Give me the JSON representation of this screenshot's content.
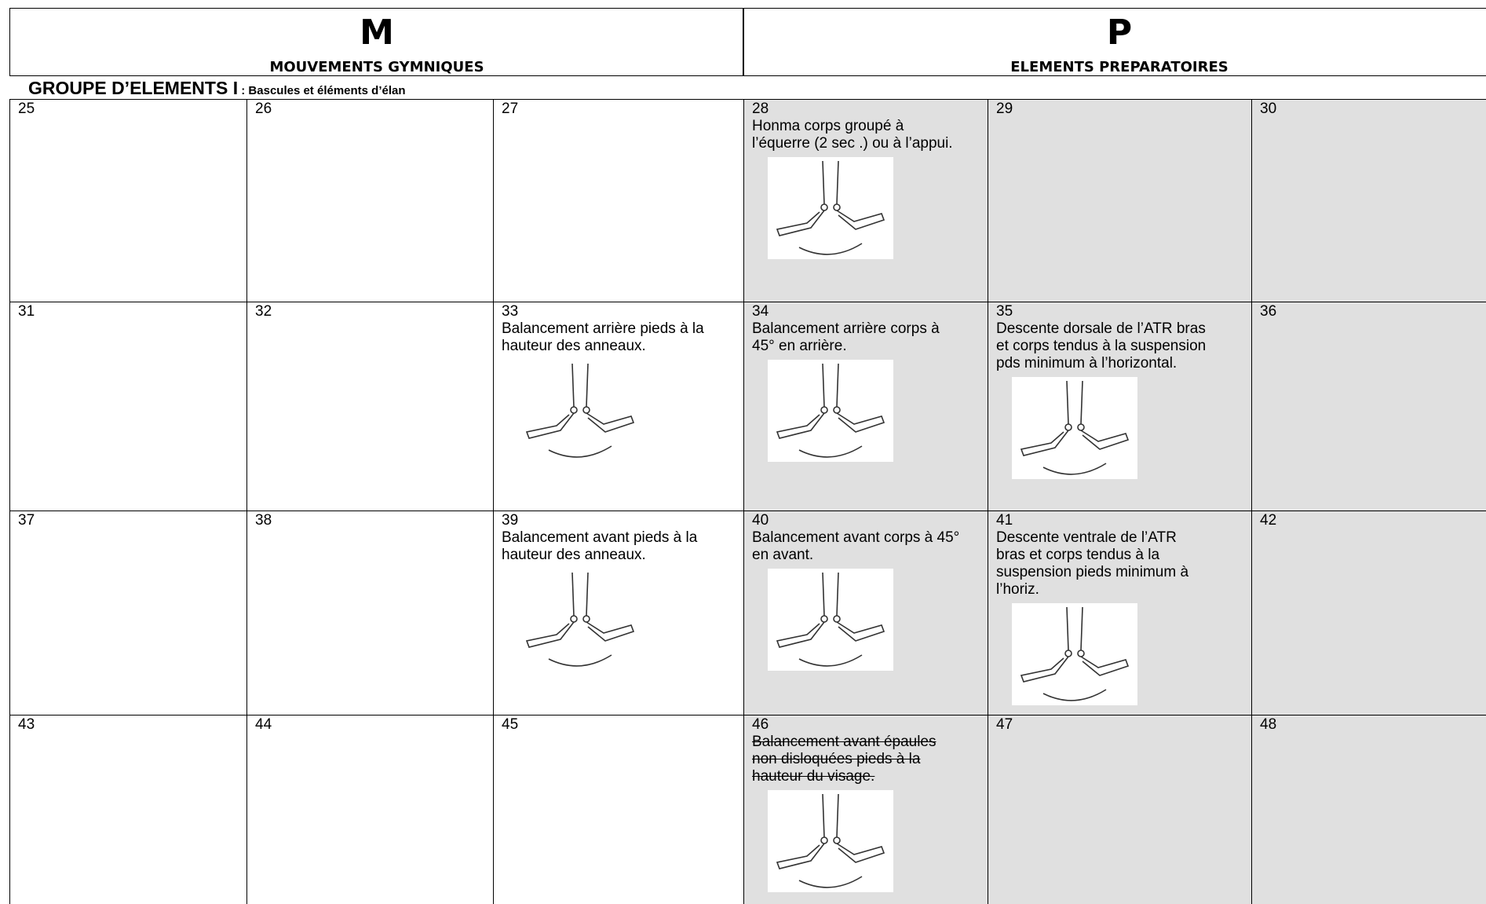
{
  "header": {
    "left": {
      "letter": "M",
      "title": "MOUVEMENTS GYMNIQUES"
    },
    "right": {
      "letter": "P",
      "title": "ELEMENTS PREPARATOIRES"
    }
  },
  "group": {
    "title": "GROUPE D’ELEMENTS I",
    "subtitle": " : Bascules et éléments d’élan"
  },
  "table": {
    "rows": [
      [
        {
          "number": 25
        },
        {
          "number": 26
        },
        {
          "number": 27
        },
        {
          "number": 28,
          "text": "Honma corps groupé à l’équerre (2 sec .) ou à l’appui."
        },
        {
          "number": 29
        },
        {
          "number": 30
        }
      ],
      [
        {
          "number": 31
        },
        {
          "number": 32
        },
        {
          "number": 33,
          "text": "Balancement arrière pieds à la hauteur des anneaux."
        },
        {
          "number": 34,
          "text": "Balancement arrière corps à 45° en arrière."
        },
        {
          "number": 35,
          "text": "Descente dorsale de l’ATR bras et corps tendus à la suspension pds minimum à l’horizontal."
        },
        {
          "number": 36
        }
      ],
      [
        {
          "number": 37
        },
        {
          "number": 38
        },
        {
          "number": 39,
          "text": "Balancement avant pieds à la hauteur des anneaux."
        },
        {
          "number": 40,
          "text": "Balancement avant corps à 45° en avant."
        },
        {
          "number": 41,
          "text": "Descente ventrale de l’ATR bras et corps tendus à la suspension pieds minimum à l’horiz."
        },
        {
          "number": 42
        }
      ],
      [
        {
          "number": 43
        },
        {
          "number": 44
        },
        {
          "number": 45
        },
        {
          "number": 46,
          "text": "Balancement avant épaules non disloquées pieds à la hauteur du visage.",
          "struck": true
        },
        {
          "number": 47
        },
        {
          "number": 48
        }
      ]
    ]
  }
}
